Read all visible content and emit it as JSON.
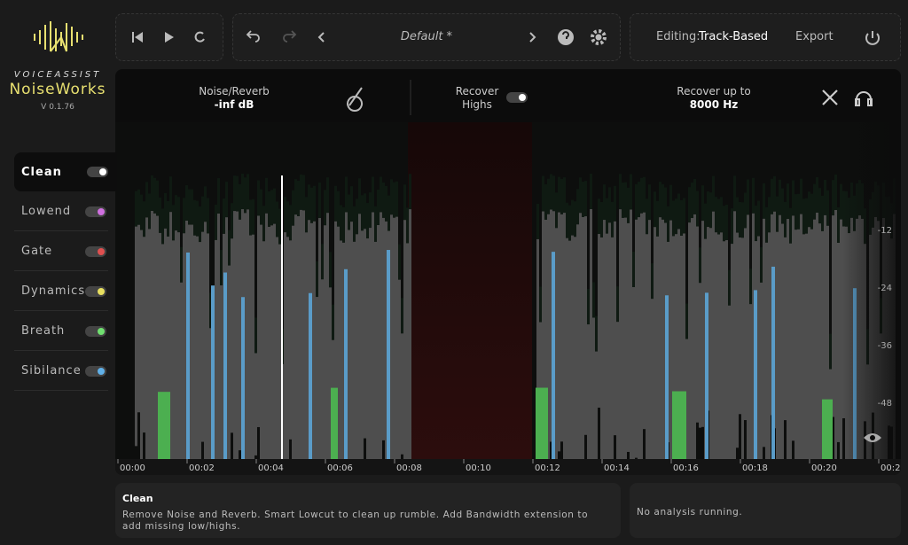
{
  "brand": {
    "company": "VOICEASSIST",
    "product": "NoiseWorks",
    "version": "V 0.1.76"
  },
  "toolbar": {
    "preset": "Default *",
    "editing_label": "Editing:",
    "editing_mode": "Track-Based",
    "export": "Export"
  },
  "controls": {
    "noise_label": "Noise/Reverb",
    "noise_value": "-inf dB",
    "recover_label": "Recover Highs",
    "recover_upto_label": "Recover up to",
    "recover_upto_value": "8000 Hz"
  },
  "modules": [
    {
      "label": "Clean",
      "color": "#ffffff"
    },
    {
      "label": "Lowend",
      "color": "#d070e0"
    },
    {
      "label": "Gate",
      "color": "#e05050"
    },
    {
      "label": "Dynamics",
      "color": "#e8e060"
    },
    {
      "label": "Breath",
      "color": "#70e070"
    },
    {
      "label": "Sibilance",
      "color": "#60b0e8"
    }
  ],
  "db_ticks": [
    "-12",
    "-24",
    "-36",
    "-48"
  ],
  "time_ticks": [
    "00:00",
    "00:02",
    "00:04",
    "00:06",
    "00:08",
    "00:10",
    "00:12",
    "00:14",
    "00:16",
    "00:18",
    "00:20",
    "00:2"
  ],
  "info": {
    "title": "Clean",
    "description": "Remove Noise and Reverb. Smart Lowcut to clean up rumble. Add Bandwidth extension to add missing low/highs.",
    "status": "No analysis running."
  }
}
